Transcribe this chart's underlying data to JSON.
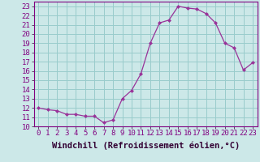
{
  "x": [
    0,
    1,
    2,
    3,
    4,
    5,
    6,
    7,
    8,
    9,
    10,
    11,
    12,
    13,
    14,
    15,
    16,
    17,
    18,
    19,
    20,
    21,
    22,
    23
  ],
  "y": [
    12,
    11.8,
    11.7,
    11.3,
    11.3,
    11.1,
    11.1,
    10.4,
    10.7,
    13.0,
    13.9,
    15.7,
    19.0,
    21.2,
    21.5,
    23.0,
    22.8,
    22.7,
    22.2,
    21.2,
    19.0,
    18.5,
    16.1,
    16.9
  ],
  "line_color": "#993399",
  "marker": "D",
  "marker_size": 2.0,
  "bg_color": "#cce8e8",
  "grid_color": "#99cccc",
  "xlabel": "Windchill (Refroidissement éolien,°C)",
  "xlabel_fontsize": 7.5,
  "ylim": [
    10,
    23.5
  ],
  "xlim": [
    -0.5,
    23.5
  ],
  "yticks": [
    10,
    11,
    12,
    13,
    14,
    15,
    16,
    17,
    18,
    19,
    20,
    21,
    22,
    23
  ],
  "xticks": [
    0,
    1,
    2,
    3,
    4,
    5,
    6,
    7,
    8,
    9,
    10,
    11,
    12,
    13,
    14,
    15,
    16,
    17,
    18,
    19,
    20,
    21,
    22,
    23
  ],
  "tick_fontsize": 6.5,
  "spine_color": "#800080",
  "axis_bg": "#cce8e8"
}
